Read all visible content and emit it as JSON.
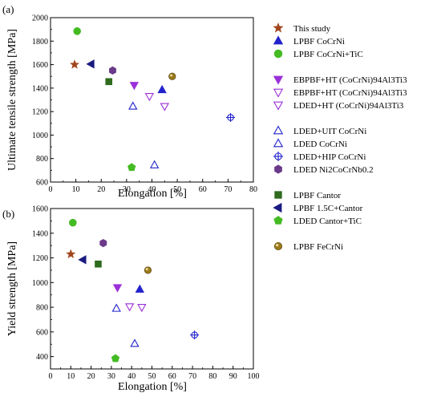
{
  "chart_data": [
    {
      "panel_label": "(a)",
      "type": "scatter",
      "xlabel": "Elongation",
      "xunit": "[%]",
      "ylabel": "Ultimate tensile strength [MPa]",
      "xlim": [
        0,
        80
      ],
      "ylim": [
        600,
        2000
      ],
      "xticks": [
        0,
        10,
        20,
        30,
        40,
        50,
        60,
        70,
        80
      ],
      "yticks": [
        600,
        800,
        1000,
        1200,
        1400,
        1600,
        1800,
        2000
      ],
      "series": [
        {
          "name": "This study",
          "points": [
            [
              9.5,
              1600
            ]
          ]
        },
        {
          "name": "LPBF CoCrNi",
          "points": [
            [
              44,
              1385
            ]
          ]
        },
        {
          "name": "LPBF CoCrNi+TiC",
          "points": [
            [
              10.5,
              1885
            ]
          ]
        },
        {
          "name": "EBPBF+HT (CoCrNi)94Al3Ti3",
          "points": [
            [
              33,
              1425
            ]
          ]
        },
        {
          "name": "EBPBF+HT (CoCrNi)94Al3Ti3 ",
          "points": [
            [
              39,
              1330
            ]
          ]
        },
        {
          "name": "LDED+HT (CoCrNi)94Al3Ti3",
          "points": [
            [
              45,
              1245
            ]
          ]
        },
        {
          "name": "LDED+UIT CoCrNi",
          "points": [
            [
              32.5,
              1245
            ]
          ]
        },
        {
          "name": "LDED CoCrNi",
          "points": [
            [
              41,
              745
            ]
          ]
        },
        {
          "name": "LDED+HIP CoCrNi",
          "points": [
            [
              71,
              1150
            ]
          ]
        },
        {
          "name": "LDED Ni2CoCrNb0.2",
          "points": [
            [
              24.5,
              1550
            ]
          ]
        },
        {
          "name": "LPBF Cantor",
          "points": [
            [
              23,
              1455
            ]
          ]
        },
        {
          "name": "LPBF 1.5C+Cantor",
          "points": [
            [
              16,
              1605
            ]
          ]
        },
        {
          "name": "LDED Cantor+TiC",
          "points": [
            [
              32,
              725
            ]
          ]
        },
        {
          "name": "LPBF FeCrNi",
          "points": [
            [
              48,
              1500
            ]
          ]
        }
      ]
    },
    {
      "panel_label": "(b)",
      "type": "scatter",
      "xlabel": "Elongation",
      "xunit": "[%]",
      "ylabel": "Yield strength [MPa]",
      "xlim": [
        0,
        100
      ],
      "ylim": [
        300,
        1600
      ],
      "xticks": [
        0,
        10,
        20,
        30,
        40,
        50,
        60,
        70,
        80,
        90,
        100
      ],
      "yticks": [
        400,
        600,
        800,
        1000,
        1200,
        1400,
        1600
      ],
      "series": [
        {
          "name": "This study",
          "points": [
            [
              10,
              1230
            ]
          ]
        },
        {
          "name": "LPBF CoCrNi",
          "points": [
            [
              44,
              945
            ]
          ]
        },
        {
          "name": "LPBF CoCrNi+TiC",
          "points": [
            [
              11,
              1485
            ]
          ]
        },
        {
          "name": "EBPBF+HT (CoCrNi)94Al3Ti3",
          "points": [
            [
              33,
              960
            ]
          ]
        },
        {
          "name": "EBPBF+HT (CoCrNi)94Al3Ti3 ",
          "points": [
            [
              39,
              805
            ]
          ]
        },
        {
          "name": "LDED+HT (CoCrNi)94Al3Ti3",
          "points": [
            [
              45,
              800
            ]
          ]
        },
        {
          "name": "LDED+UIT CoCrNi",
          "points": [
            [
              32.5,
              790
            ]
          ]
        },
        {
          "name": "LDED CoCrNi",
          "points": [
            [
              41.5,
              505
            ]
          ]
        },
        {
          "name": "LDED+HIP CoCrNi",
          "points": [
            [
              71,
              575
            ]
          ]
        },
        {
          "name": "LDED Ni2CoCrNb0.2",
          "points": [
            [
              26,
              1320
            ]
          ]
        },
        {
          "name": "LPBF Cantor",
          "points": [
            [
              23.5,
              1150
            ]
          ]
        },
        {
          "name": "LPBF 1.5C+Cantor",
          "points": [
            [
              16,
              1185
            ]
          ]
        },
        {
          "name": "LDED Cantor+TiC",
          "points": [
            [
              32,
              385
            ]
          ]
        },
        {
          "name": "LPBF FeCrNi",
          "points": [
            [
              48,
              1100
            ]
          ]
        }
      ]
    }
  ],
  "legend": [
    {
      "label": "This study",
      "marker": "star",
      "color": "#a0451c",
      "fill": true
    },
    {
      "label": "LPBF CoCrNi",
      "marker": "triangle-up",
      "color": "#2222cc",
      "fill": true
    },
    {
      "label": "LPBF CoCrNi+TiC",
      "marker": "circle",
      "color": "#44bb22",
      "fill": true
    },
    {
      "label": "EBPBF+HT (CoCrNi)94Al3Ti3",
      "marker": "triangle-down",
      "color": "#9b30d9",
      "fill": true
    },
    {
      "label": "EBPBF+HT (CoCrNi)94Al3Ti3",
      "marker": "triangle-down",
      "color": "#9b30d9",
      "fill": false
    },
    {
      "label": "LDED+HT (CoCrNi)94Al3Ti3",
      "marker": "triangle-down",
      "color": "#9b30d9",
      "fill": false
    },
    {
      "label": "LDED+UIT CoCrNi",
      "marker": "triangle-up",
      "color": "#2222cc",
      "fill": false
    },
    {
      "label": "LDED CoCrNi",
      "marker": "triangle-up",
      "color": "#2222cc",
      "fill": false
    },
    {
      "label": "LDED+HIP CoCrNi",
      "marker": "crosshair",
      "color": "#2222cc",
      "fill": false
    },
    {
      "label": "LDED Ni2CoCrNb0.2",
      "marker": "hexagon",
      "color": "#6b3a8a",
      "fill": true
    },
    {
      "label": "LPBF Cantor",
      "marker": "square",
      "color": "#2e6b1e",
      "fill": true
    },
    {
      "label": "LPBF 1.5C+Cantor",
      "marker": "triangle-left",
      "color": "#1a1a80",
      "fill": true
    },
    {
      "label": "LDED Cantor+TiC",
      "marker": "pentagon",
      "color": "#44bb22",
      "fill": true
    },
    {
      "label": "LPBF FeCrNi",
      "marker": "sphere",
      "color": "#9a7a1a",
      "fill": true
    }
  ]
}
